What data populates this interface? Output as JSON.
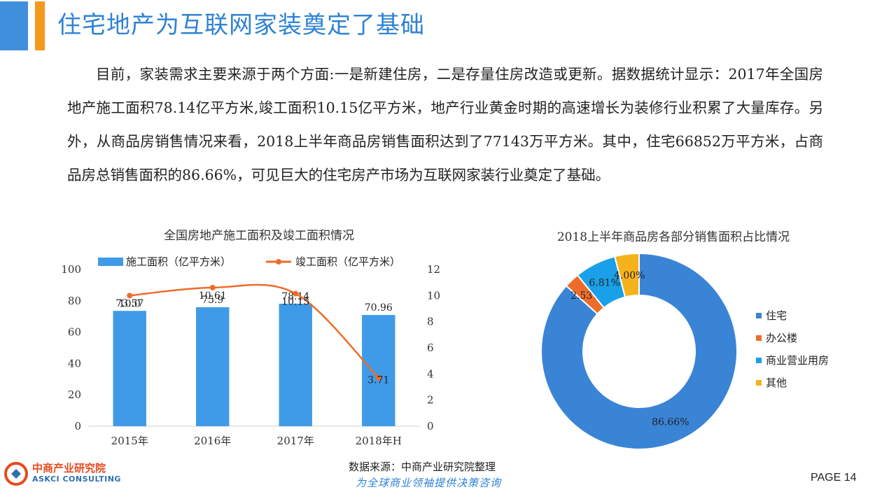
{
  "header": {
    "title": "住宅地产为互联网家装奠定了基础",
    "accent_blue": "#3f8fdc",
    "accent_orange": "#f39a1e"
  },
  "paragraph": "目前，家装需求主要来源于两个方面:一是新建住房，二是存量住房改造或更新。据数据统计显示：2017年全国房地产施工面积78.14亿平方米,竣工面积10.15亿平方米，地产行业黄金时期的高速增长为装修行业积累了大量库存。另外，从商品房销售情况来看，2018上半年商品房销售面积达到了77143万平方米。其中，住宅66852万平方米，占商品房总销售面积的86.66%，可见巨大的住宅房产市场为互联网家装行业奠定了基础。",
  "chart_data": [
    {
      "type": "bar",
      "title": "全国房地产施工面积及竣工面积情况",
      "categories": [
        "2015年",
        "2016年",
        "2017年",
        "2018年H"
      ],
      "series": [
        {
          "name": "施工面积（亿平方米）",
          "type": "bar",
          "axis": "left",
          "color": "#3f9be8",
          "values": [
            73.57,
            75.9,
            78.14,
            70.96
          ]
        },
        {
          "name": "竣工面积（亿平方米）",
          "type": "line",
          "axis": "right",
          "color": "#ee6c2a",
          "values": [
            10.0,
            10.61,
            10.15,
            3.71
          ]
        }
      ],
      "y_left": {
        "min": 0,
        "max": 100,
        "ticks": [
          0,
          20,
          40,
          60,
          80,
          100
        ]
      },
      "y_right": {
        "min": 0,
        "max": 12,
        "ticks": [
          0,
          2,
          4,
          6,
          8,
          10,
          12
        ]
      },
      "bar_labels": [
        "73.57",
        "75.9",
        "78.14",
        "70.96"
      ],
      "line_labels": [
        "10.0",
        "10.61",
        "10.15",
        "3.71"
      ],
      "legend_position": "top",
      "grid": false
    },
    {
      "type": "pie",
      "title": "2018上半年商品房各部分销售面积占比情况",
      "labels": [
        "住宅",
        "办公楼",
        "商业营业用房",
        "其他"
      ],
      "values": [
        86.66,
        2.53,
        6.81,
        4.0
      ],
      "value_labels": [
        "86.66%",
        "2.53%",
        "6.81%",
        "4.00%"
      ],
      "colors": [
        "#3a84d6",
        "#ee6c2a",
        "#1aa0e8",
        "#f6b21c"
      ],
      "donut": true,
      "legend_position": "right"
    }
  ],
  "footer": {
    "logo_cn": "中商产业研究院",
    "logo_en": "ASKCI CONSULTING",
    "source": "数据来源：中商产业研究院整理",
    "slogan": "为全球商业领袖提供决策咨询",
    "page": "PAGE 14"
  }
}
